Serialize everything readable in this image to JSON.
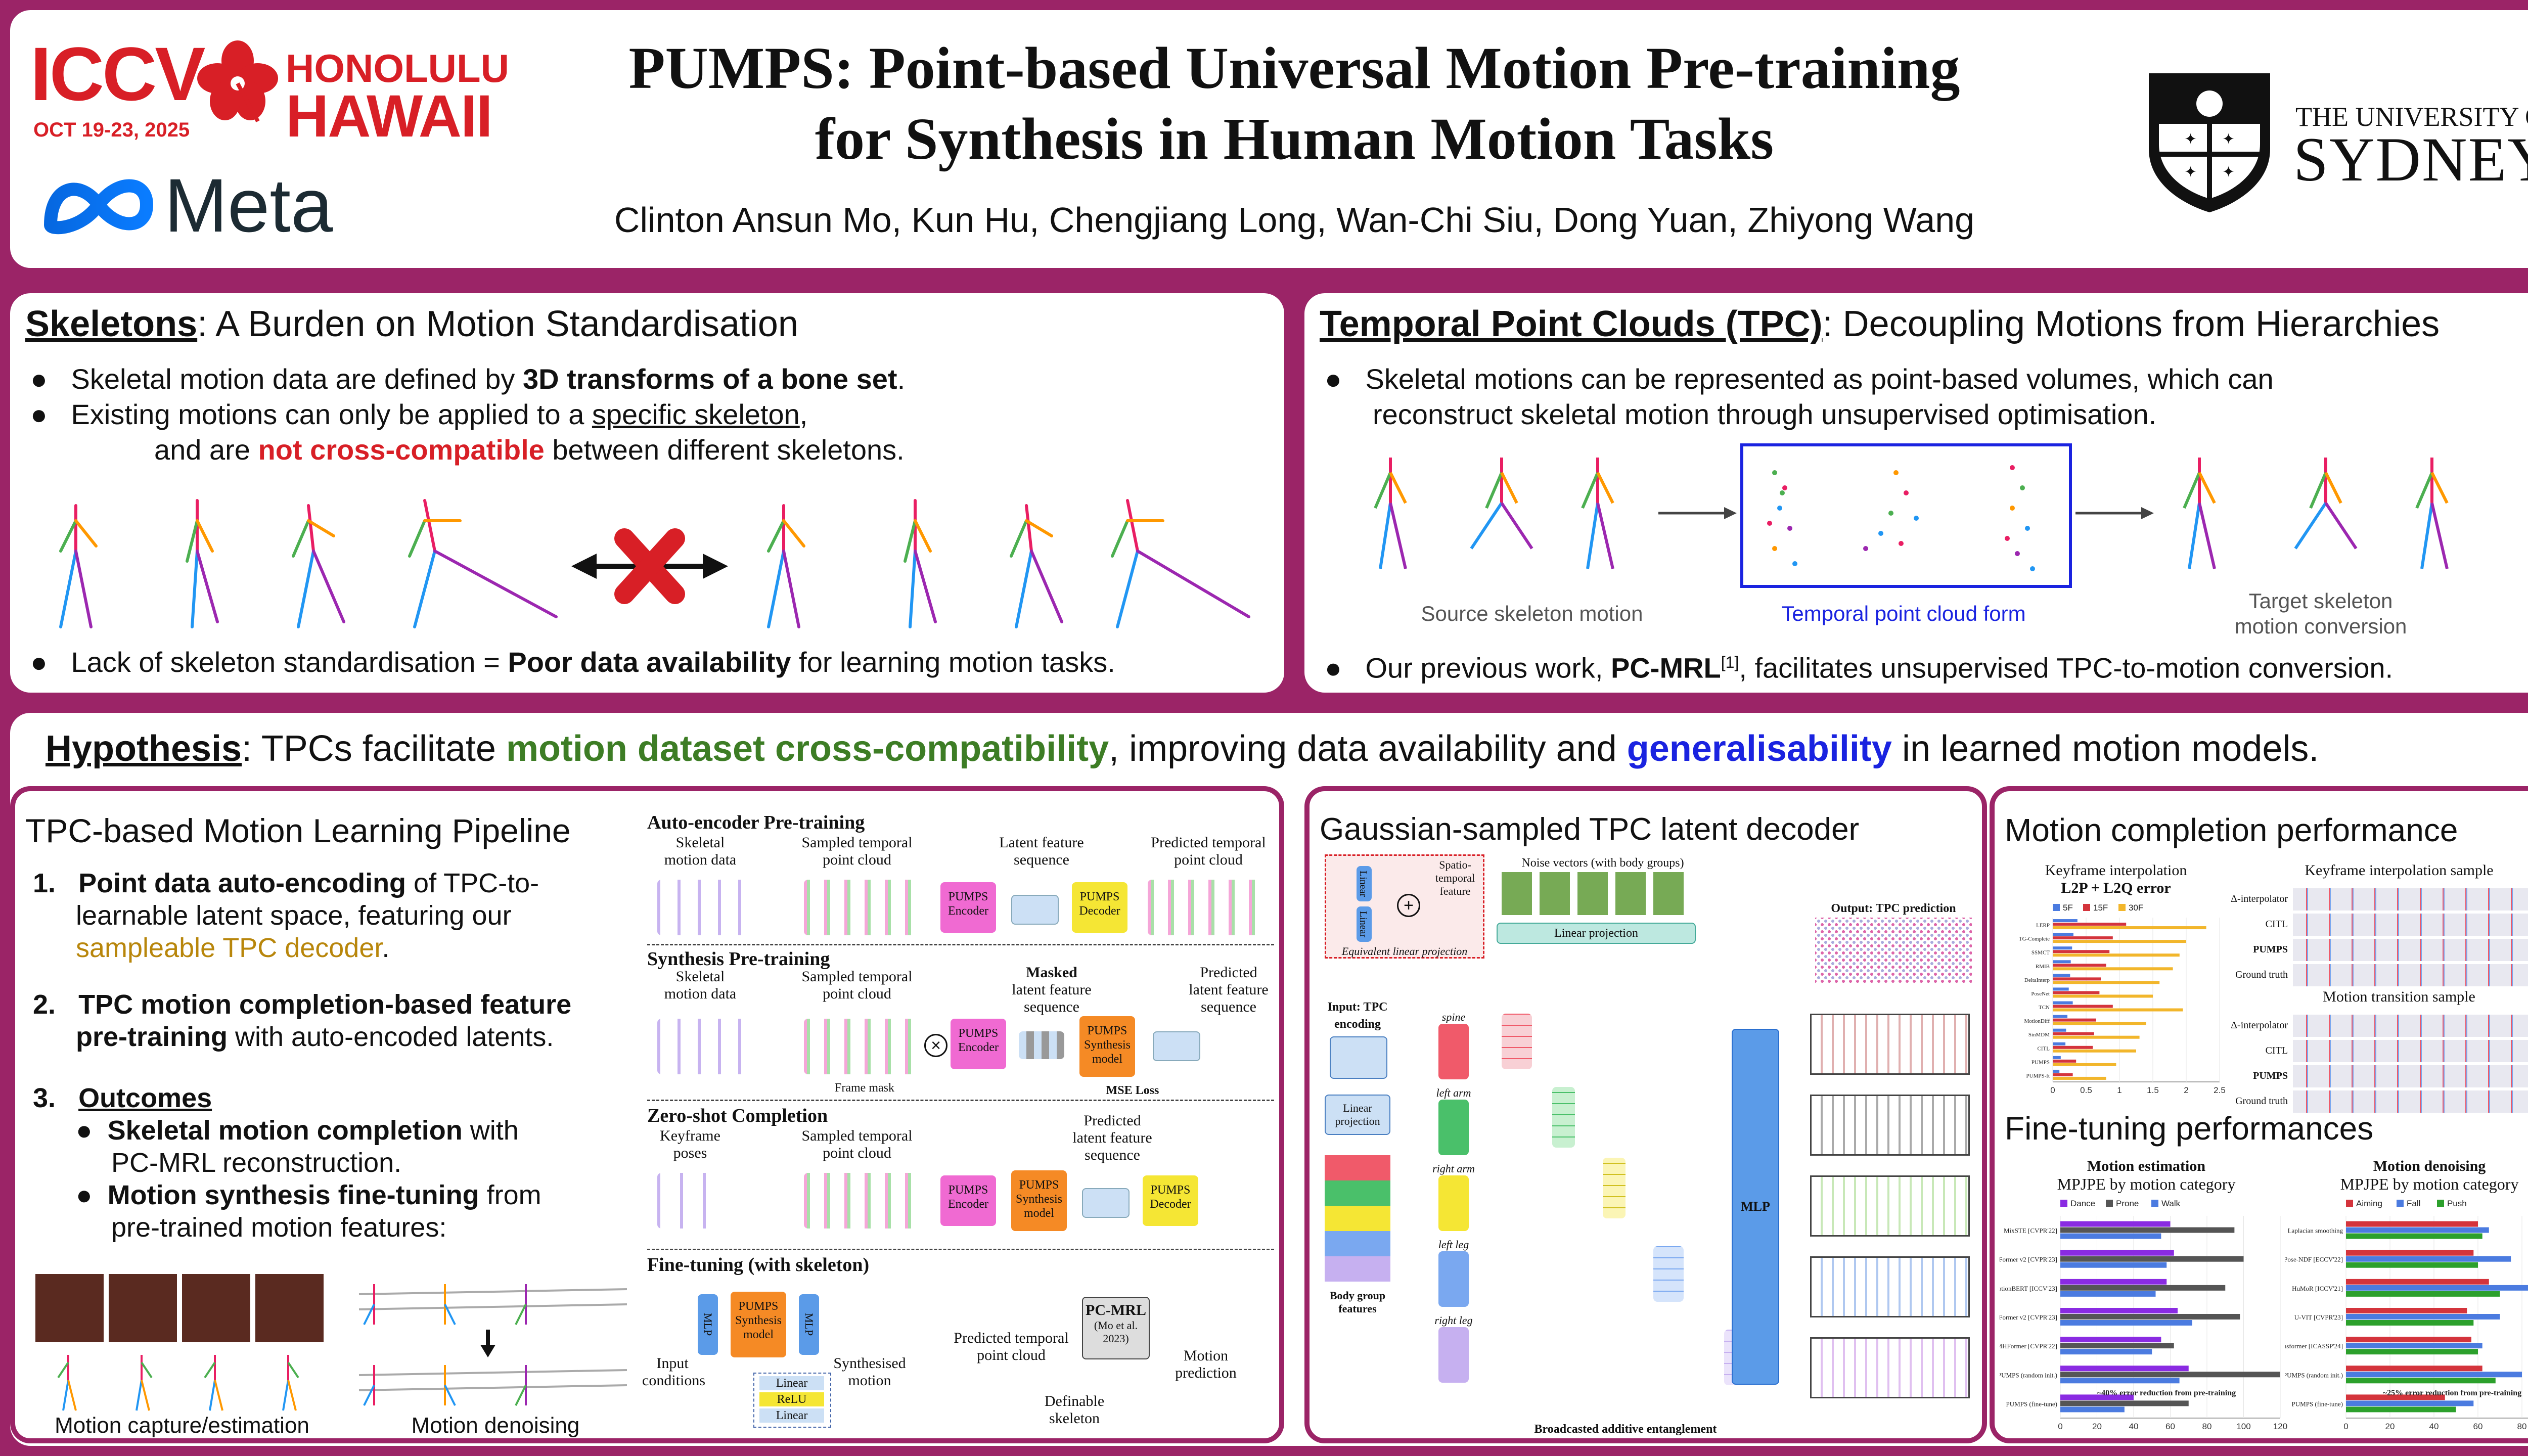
{
  "header": {
    "conf_name": "ICCV",
    "conf_dates": "OCT 19-23, 2025",
    "conf_city": "HONOLULU",
    "conf_state": "HAWAII",
    "sponsor": "Meta",
    "title_line1": "PUMPS: Point-based Universal Motion Pre-training",
    "title_line2": "for Synthesis in Human Motion Tasks",
    "authors": "Clinton Ansun Mo, Kun Hu, Chengjiang Long, Wan-Chi Siu, Dong Yuan, Zhiyong Wang",
    "uni_line1": "THE UNIVERSITY OF",
    "uni_line2": "SYDNEY"
  },
  "skeletons": {
    "title_bold": "Skeletons",
    "title_rest": ": A Burden on Motion Standardisation",
    "b1_pre": "Skeletal motion data are defined by ",
    "b1_bold": "3D transforms of a bone set",
    "b1_post": ".",
    "b2_pre": "Existing motions can only be applied to a ",
    "b2_u": "specific skeleton",
    "b2_post": ",",
    "b2_l2_pre": "and are ",
    "b2_l2_red": "not cross-compatible",
    "b2_l2_post": " between different skeletons.",
    "b3_pre": "Lack of skeleton standardisation = ",
    "b3_bold": "Poor data availability",
    "b3_post": " for learning motion tasks."
  },
  "tpc": {
    "title_bold": "Temporal Point Clouds (TPC)",
    "title_rest": ": Decoupling Motions from Hierarchies",
    "b1": "Skeletal motions can be represented as point-based volumes, which can",
    "b1_l2": "reconstruct skeletal motion through unsupervised optimisation.",
    "cap_source": "Source skeleton motion",
    "cap_tpc": "Temporal point cloud form",
    "cap_target1": "Target skeleton",
    "cap_target2": "motion conversion",
    "b2_pre": "Our previous work, ",
    "b2_bold": "PC-MRL",
    "b2_sup": "[1]",
    "b2_post": ", facilitates unsupervised TPC-to-motion conversion."
  },
  "hypothesis": {
    "label": "Hypothesis",
    "t1": ": TPCs facilitate ",
    "green": "motion dataset cross-compatibility",
    "t2": ", improving data availability and ",
    "blue": "generalisability",
    "t3": " in learned motion models."
  },
  "pipeline": {
    "title": "TPC-based Motion Learning Pipeline",
    "n1": "1.",
    "i1_bold": "Point data auto-encoding",
    "i1_rest": " of TPC-to-",
    "i1_l2": "learnable latent space, featuring our",
    "i1_l3": "sampleable TPC decoder",
    "i1_l3_post": ".",
    "n2": "2.",
    "i2_bold": "TPC motion completion-based feature",
    "i2_l2_bold": "pre-training",
    "i2_l2_rest": " with auto-encoded latents.",
    "n3": "3.",
    "i3": "Outcomes",
    "s1_bold": "Skeletal motion completion",
    "s1_rest": " with",
    "s1_l2": "PC-MRL reconstruction.",
    "s2_bold": "Motion synthesis fine-tuning",
    "s2_rest": " from",
    "s2_l2": "pre-trained motion features:",
    "cap1": "Motion capture/estimation",
    "cap2": "Motion denoising"
  },
  "diagram": {
    "ae_title": "Auto-encoder Pre-training",
    "skel_data": "Skeletal motion data",
    "sampled_tpc": "Sampled temporal point cloud",
    "latent_seq": "Latent feature sequence",
    "pred_tpc": "Predicted temporal point cloud",
    "encoder": "PUMPS Encoder",
    "decoder": "PUMPS Decoder",
    "synth_title": "Synthesis Pre-training",
    "masked": "Masked",
    "masked_seq": "latent feature sequence",
    "pred_latent": "Predicted latent feature sequence",
    "synth_model": "PUMPS Synthesis model",
    "frame_mask": "Frame mask",
    "mse": "MSE Loss",
    "zs_title": "Zero-shot Completion",
    "keyframe": "Keyframe poses",
    "ft_title": "Fine-tuning (with skeleton)",
    "mlp": "MLP",
    "input_cond": "Input conditions",
    "synth_motion": "Synthesised motion",
    "linear": "Linear",
    "relu": "ReLU",
    "pcmrl": "PC-MRL",
    "pcmrl_ref": "(Mo et al. 2023)",
    "motion_pred": "Motion prediction",
    "definable": "Definable skeleton",
    "pred_tpc2": "Predicted temporal point cloud"
  },
  "gaussian": {
    "title": "Gaussian-sampled TPC latent decoder",
    "spatio": "Spatio-temporal feature",
    "equiv": "Equivalent linear projection",
    "noise": "Noise vectors (with body groups)",
    "linproj": "Linear projection",
    "output": "Output: TPC prediction",
    "input": "Input: TPC encoding",
    "linproj2": "Linear projection",
    "body_group": "Body group features",
    "spine": "spine",
    "larm": "left arm",
    "rarm": "right arm",
    "lleg": "left leg",
    "rleg": "right leg",
    "mlp": "MLP",
    "broadcast": "Broadcasted additive entanglement",
    "linear": "Linear"
  },
  "completion": {
    "title": "Motion completion performance",
    "chart_title1": "Keyframe interpolation",
    "chart_title2": "L2P + L2Q error",
    "sample_title": "Keyframe interpolation sample",
    "transition_title": "Motion transition sample",
    "rows_interp": [
      "Δ-interpolator",
      "CITL",
      "PUMPS",
      "Ground truth"
    ],
    "rows_trans": [
      "Δ-interpolator",
      "CITL",
      "PUMPS",
      "Ground truth"
    ]
  },
  "finetune": {
    "title": "Fine-tuning performances",
    "est_title": "Motion estimation",
    "est_sub": "MPJPE by motion category",
    "est_note": "~40% error reduction from pre-training",
    "den_title": "Motion denoising",
    "den_sub": "MPJPE by motion category",
    "den_note": "~25% error reduction from pre-training"
  },
  "chart_data": [
    {
      "type": "bar",
      "title": "Keyframe interpolation",
      "subtitle": "L2P + L2Q error",
      "orientation": "horizontal",
      "categories": [
        "LERP",
        "TG-Complete",
        "SSMCT",
        "RMIB",
        "DeltaInterp",
        "PoseNet",
        "TCN",
        "MotionDiff",
        "SinMDM",
        "CITL",
        "PUMPS",
        "PUMPS-ft"
      ],
      "series": [
        {
          "name": "5F",
          "color": "#4b7be0",
          "values": [
            0.37,
            0.31,
            0.29,
            0.27,
            0.26,
            0.24,
            0.3,
            0.22,
            0.2,
            0.19,
            0.12,
            0.1
          ]
        },
        {
          "name": "15F",
          "color": "#d4343c",
          "values": [
            1.1,
            0.9,
            0.85,
            0.8,
            0.72,
            0.7,
            0.9,
            0.65,
            0.62,
            0.6,
            0.35,
            0.3
          ]
        },
        {
          "name": "30F",
          "color": "#f2b62b",
          "values": [
            2.3,
            2.0,
            1.9,
            1.8,
            1.6,
            1.5,
            1.95,
            1.4,
            1.3,
            1.25,
            0.95,
            0.8
          ]
        }
      ],
      "xlim": [
        0,
        2.5
      ],
      "xticks": [
        "0",
        "0.5",
        "1",
        "1.5",
        "2",
        "2.5"
      ],
      "legend": "top"
    },
    {
      "type": "bar",
      "title": "Motion estimation",
      "subtitle": "MPJPE by motion category",
      "orientation": "horizontal",
      "categories": [
        "MixSTE [CVPR'22]",
        "PoseFormer v2 [CVPR'23]",
        "MotionBERT [ICCV'23]",
        "PoseFormer v2 [CVPR'23]",
        "MHFormer [CVPR'22]",
        "PUMPS (random init.)",
        "PUMPS (fine-tune)"
      ],
      "series": [
        {
          "name": "Dance",
          "color": "#8a2be2",
          "values": [
            60,
            62,
            58,
            64,
            55,
            70,
            40
          ]
        },
        {
          "name": "Prone",
          "color": "#555555",
          "values": [
            95,
            100,
            90,
            98,
            62,
            120,
            70
          ]
        },
        {
          "name": "Walk",
          "color": "#4b7be0",
          "values": [
            55,
            58,
            52,
            72,
            50,
            65,
            35
          ]
        }
      ],
      "xlim": [
        0,
        120
      ],
      "xticks": [
        "0",
        "20",
        "40",
        "60",
        "80",
        "100",
        "120"
      ],
      "legend": "top"
    },
    {
      "type": "bar",
      "title": "Motion denoising",
      "subtitle": "MPJPE by motion category",
      "orientation": "horizontal",
      "categories": [
        "Laplacian smoothing",
        "Pose-NDF [ECCV'22]",
        "HuMoR [ICCV'21]",
        "U-VIT [CVPR'23]",
        "Transformer [ICASSP'24]",
        "PUMPS (random init.)",
        "PUMPS (fine-tune)"
      ],
      "series": [
        {
          "name": "Aiming",
          "color": "#d4343c",
          "values": [
            60,
            58,
            65,
            55,
            57,
            62,
            45
          ]
        },
        {
          "name": "Fall",
          "color": "#4b7be0",
          "values": [
            65,
            75,
            85,
            70,
            62,
            80,
            58
          ]
        },
        {
          "name": "Push",
          "color": "#2ca02c",
          "values": [
            62,
            60,
            70,
            58,
            60,
            68,
            50
          ]
        }
      ],
      "xlim": [
        0,
        100
      ],
      "xticks": [
        "0",
        "20",
        "40",
        "60",
        "80",
        "100"
      ],
      "legend": "top"
    }
  ],
  "colors": {
    "brand": "#9b2467",
    "red": "#d81f26",
    "green": "#3d7d25",
    "blue": "#1a23e0",
    "gold": "#b8860b",
    "encoder_pink": "#f06ad2",
    "decoder_yellow": "#f5e634",
    "synth_orange": "#f58a25",
    "mlp_blue": "#5b9be8"
  }
}
